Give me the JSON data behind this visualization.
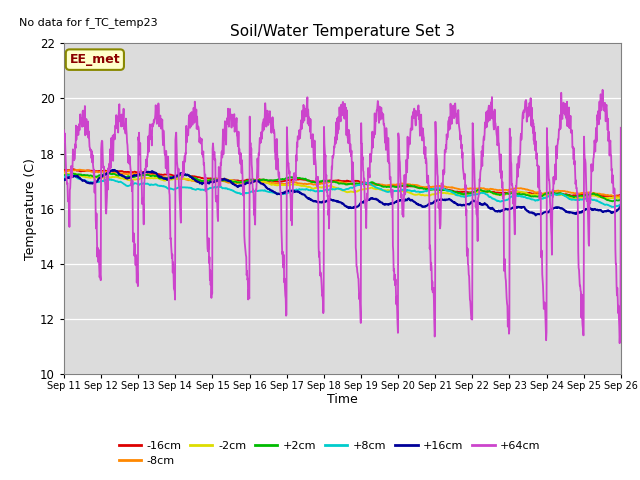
{
  "title": "Soil/Water Temperature Set 3",
  "xlabel": "Time",
  "ylabel": "Temperature (C)",
  "ylim": [
    10,
    22
  ],
  "bg_color": "#dcdcdc",
  "no_data_text": "No data for f_TC_temp23",
  "ee_met_label": "EE_met",
  "legend_entries": [
    "-16cm",
    "-8cm",
    "-2cm",
    "+2cm",
    "+8cm",
    "+16cm",
    "+64cm"
  ],
  "line_colors": [
    "#dd0000",
    "#ff8800",
    "#dddd00",
    "#00bb00",
    "#00cccc",
    "#000099",
    "#cc44cc"
  ],
  "x_tick_labels": [
    "Sep 11",
    "Sep 12",
    "Sep 13",
    "Sep 14",
    "Sep 15",
    "Sep 16",
    "Sep 17",
    "Sep 18",
    "Sep 19",
    "Sep 20",
    "Sep 21",
    "Sep 22",
    "Sep 23",
    "Sep 24",
    "Sep 25",
    "Sep 26"
  ],
  "num_points": 1440,
  "days": 15
}
